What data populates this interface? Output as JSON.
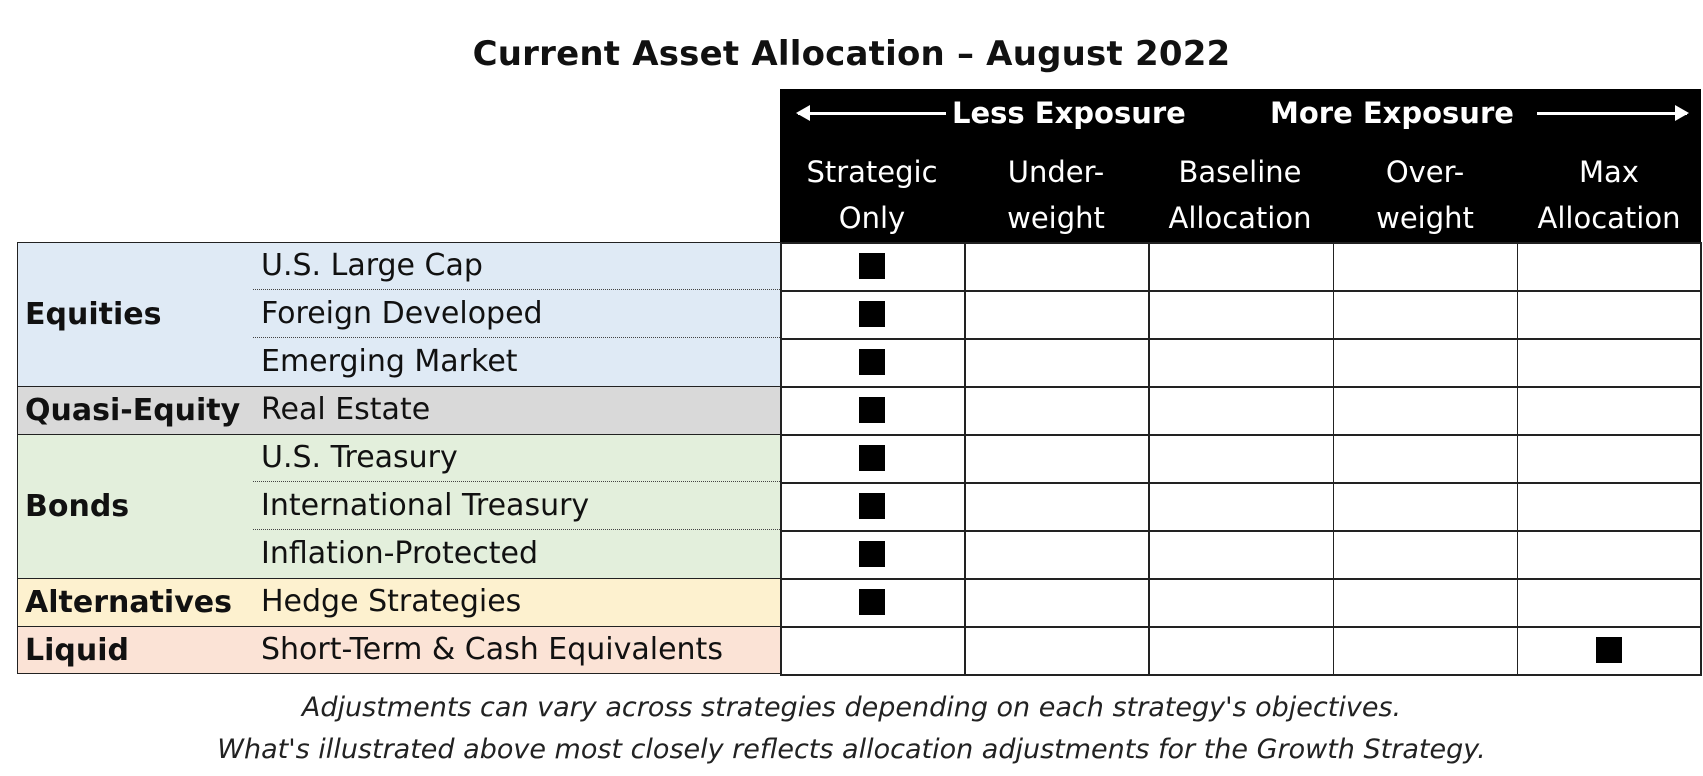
{
  "title": "Current Asset Allocation – August 2022",
  "exposure": {
    "less": "Less Exposure",
    "more": "More Exposure"
  },
  "columns": [
    {
      "line1": "Strategic",
      "line2": "Only"
    },
    {
      "line1": "Under-",
      "line2": "weight"
    },
    {
      "line1": "Baseline",
      "line2": "Allocation"
    },
    {
      "line1": "Over-",
      "line2": "weight"
    },
    {
      "line1": "Max",
      "line2": "Allocation"
    }
  ],
  "groups": [
    {
      "name": "Equities",
      "color": "#dfeaf5",
      "rows": [
        {
          "label": "U.S. Large Cap",
          "col": 0
        },
        {
          "label": "Foreign Developed",
          "col": 0
        },
        {
          "label": "Emerging Market",
          "col": 0
        }
      ]
    },
    {
      "name": "Quasi-Equity",
      "color": "#d9d9d9",
      "rows": [
        {
          "label": "Real Estate",
          "col": 0
        }
      ]
    },
    {
      "name": "Bonds",
      "color": "#e3efdc",
      "rows": [
        {
          "label": "U.S. Treasury",
          "col": 0
        },
        {
          "label": "International Treasury",
          "col": 0
        },
        {
          "label": "Inflation-Protected",
          "col": 0
        }
      ]
    },
    {
      "name": "Alternatives",
      "color": "#fdf1cf",
      "rows": [
        {
          "label": "Hedge Strategies",
          "col": 0
        }
      ]
    },
    {
      "name": "Liquid",
      "color": "#fbe3d6",
      "rows": [
        {
          "label": "Short-Term & Cash Equivalents",
          "col": 4
        }
      ]
    }
  ],
  "notes": [
    "Adjustments can vary across strategies depending on each strategy's objectives.",
    "What's illustrated above most closely reflects allocation adjustments for the Growth Strategy."
  ]
}
